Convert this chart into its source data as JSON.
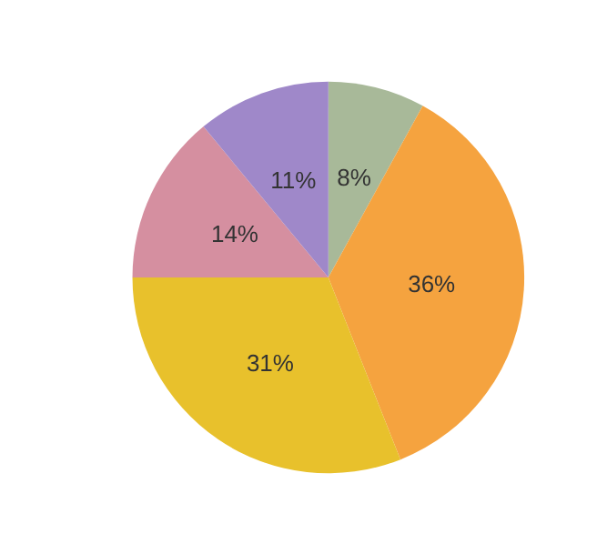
{
  "chart_data": {
    "type": "pie",
    "categories": [
      null,
      null,
      null,
      null,
      null
    ],
    "values": [
      8,
      36,
      31,
      14,
      11
    ],
    "colors": [
      "#a8b999",
      "#f5a33f",
      "#e8c12c",
      "#d58fa0",
      "#9f88c9"
    ],
    "value_labels": [
      "8%",
      "36%",
      "31%",
      "14%",
      "11%"
    ]
  }
}
